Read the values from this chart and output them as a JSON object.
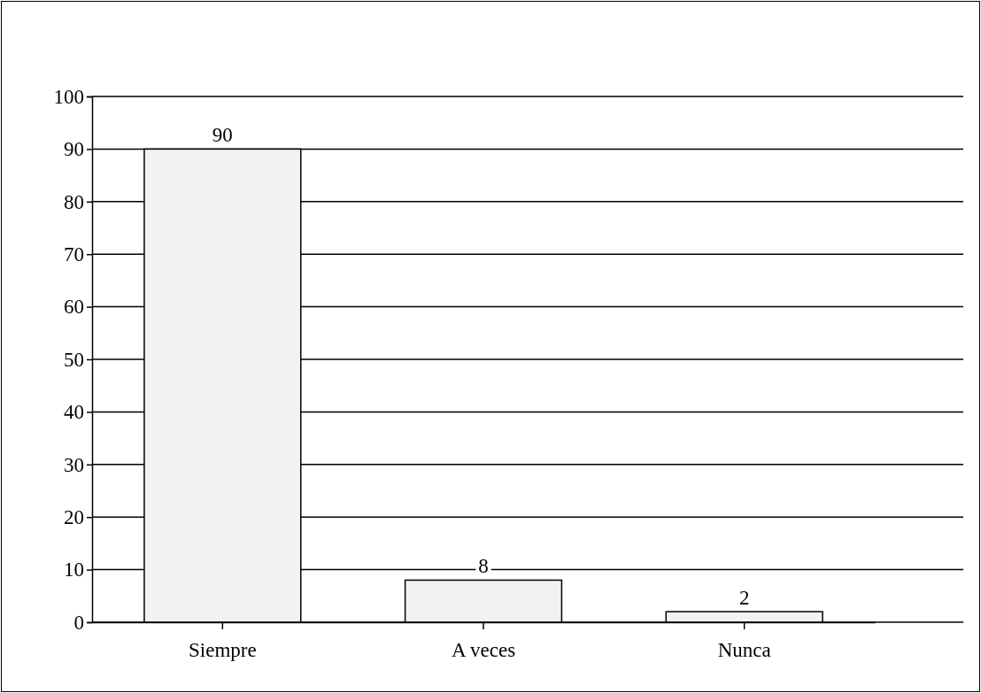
{
  "chart_data": {
    "type": "bar",
    "categories": [
      "Siempre",
      "A veces",
      "Nunca"
    ],
    "values": [
      90,
      8,
      2
    ],
    "color": "#f2f2f2",
    "ylim": [
      0,
      100
    ],
    "yticks": [
      0,
      10,
      20,
      30,
      40,
      50,
      60,
      70,
      80,
      90,
      100
    ],
    "grid": "y",
    "data_labels": true
  }
}
